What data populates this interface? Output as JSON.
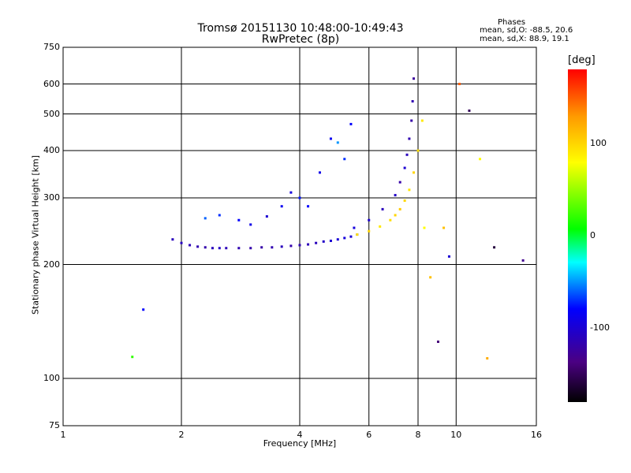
{
  "header": {
    "title_line1": "Tromsø 20151130 10:48:00-10:49:43",
    "title_line2": "RwPretec (8p)",
    "phases_label": "Phases",
    "phase_stats_o": "mean, sd,O: -88.5, 20.6",
    "phase_stats_x": "mean, sd,X:  88.9, 19.1"
  },
  "colorbar": {
    "title": "[deg]",
    "ticks": [
      "100",
      "0",
      "-100"
    ],
    "tick_values": [
      100,
      0,
      -100
    ],
    "range": [
      -180,
      180
    ]
  },
  "colors": {
    "o_mode": "#1a1aee",
    "x_mode": "#e6e61a",
    "grid": "#000000"
  },
  "chart_data": {
    "type": "scatter",
    "title": "Tromsø 20151130 10:48:00-10:49:43",
    "subtitle": "RwPretec (8p)",
    "xlabel": "Frequency [MHz]",
    "ylabel": "Stationary phase Virtual Height [km]",
    "x_scale": "log",
    "y_scale": "log",
    "xlim": [
      1,
      16
    ],
    "ylim": [
      75,
      750
    ],
    "x_ticks": [
      1,
      2,
      4,
      6,
      8,
      10,
      16
    ],
    "x_tick_labels": [
      "1",
      "2",
      "4",
      "6",
      "8",
      "10",
      "16"
    ],
    "y_ticks": [
      75,
      100,
      200,
      300,
      400,
      500,
      600,
      750
    ],
    "y_tick_labels": [
      "75",
      "100",
      "200",
      "300",
      "400",
      "500",
      "600",
      "750"
    ],
    "grid": true,
    "color_variable": "Phase [deg]",
    "color_range": [
      -180,
      180
    ],
    "series": [
      {
        "x": [
          1.9,
          2.0,
          2.1,
          2.2,
          2.3,
          2.4,
          2.5,
          2.6,
          2.8,
          3.0,
          3.2,
          3.4,
          3.6,
          3.8,
          4.0,
          4.2,
          4.4,
          4.6,
          4.8,
          5.0,
          5.2,
          5.4,
          5.6
        ],
        "y": [
          233,
          228,
          225,
          223,
          222,
          221,
          221,
          221,
          221,
          221,
          222,
          222,
          223,
          224,
          225,
          226,
          228,
          230,
          231,
          233,
          235,
          237,
          240
        ],
        "phase": [
          -110,
          -108,
          -112,
          -115,
          -118,
          -110,
          -105,
          -112,
          -115,
          -118,
          -120,
          -115,
          -110,
          -118,
          -115,
          -112,
          -110,
          -105,
          -100,
          -98,
          -95,
          -100,
          -102
        ]
      },
      {
        "x": [
          5.6,
          6.0,
          6.4,
          6.8,
          7.0,
          7.2,
          7.4,
          7.6,
          7.8,
          8.0,
          8.2
        ],
        "y": [
          240,
          245,
          252,
          262,
          270,
          280,
          295,
          315,
          350,
          400,
          480
        ],
        "phase": [
          95,
          100,
          90,
          95,
          100,
          105,
          98,
          92,
          100,
          95,
          90
        ]
      },
      {
        "x": [
          5.5,
          6.0,
          6.5,
          7.0,
          7.2,
          7.4,
          7.5,
          7.6,
          7.7,
          7.75,
          7.8
        ],
        "y": [
          250,
          262,
          280,
          305,
          330,
          360,
          390,
          430,
          480,
          540,
          620
        ],
        "phase": [
          -95,
          -100,
          -110,
          -105,
          -120,
          -100,
          -110,
          -115,
          -120,
          -115,
          -125
        ]
      },
      {
        "x": [
          2.3,
          2.5,
          2.8,
          3.0,
          3.3,
          3.6,
          3.8,
          4.0,
          4.2,
          4.5,
          4.8,
          5.0,
          5.2,
          5.4
        ],
        "y": [
          265,
          270,
          262,
          255,
          268,
          285,
          310,
          300,
          285,
          350,
          430,
          420,
          380,
          470
        ],
        "phase": [
          -60,
          -70,
          -80,
          -90,
          -100,
          -85,
          -95,
          -75,
          -80,
          -90,
          -85,
          -50,
          -70,
          -80
        ]
      },
      {
        "x": [
          1.5,
          1.6,
          8.3,
          8.6,
          9.0,
          9.3,
          9.6,
          10.2,
          10.8,
          11.5,
          12.0,
          12.5,
          14.8
        ],
        "y": [
          114,
          152,
          250,
          185,
          125,
          250,
          210,
          600,
          510,
          380,
          113,
          222,
          205
        ],
        "phase": [
          20,
          -80,
          80,
          110,
          -140,
          110,
          -100,
          150,
          -150,
          80,
          120,
          -160,
          -130
        ]
      }
    ]
  }
}
